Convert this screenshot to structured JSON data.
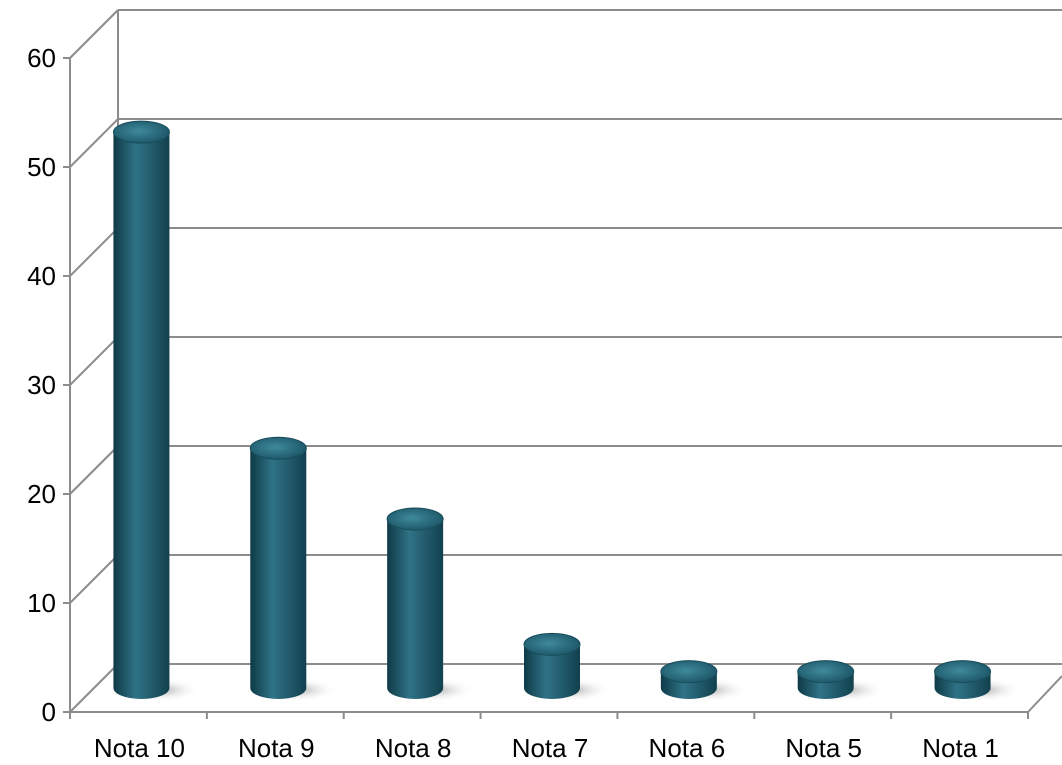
{
  "chart_data": {
    "type": "bar",
    "categories": [
      "Nota 10",
      "Nota 9",
      "Nota 8",
      "Nota 7",
      "Nota 6",
      "Nota 5",
      "Nota 1"
    ],
    "values": [
      51,
      22,
      15.5,
      4,
      1.5,
      1.5,
      1.5
    ],
    "ylim": [
      0,
      60
    ],
    "yticks": [
      0,
      10,
      20,
      30,
      40,
      50,
      60
    ],
    "grid": true,
    "style": "3d-cylinder",
    "colors": {
      "bar": "#1f5a6b",
      "bar_light": "#3f8a9c",
      "bar_dark": "#0f3a47",
      "grid": "#8c8c8c"
    }
  }
}
